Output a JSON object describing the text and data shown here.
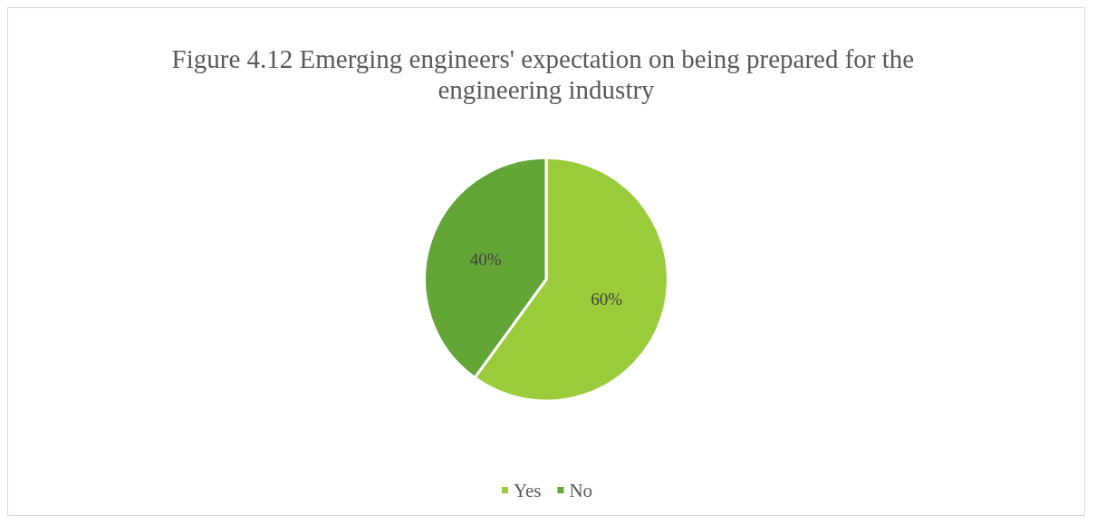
{
  "chart_data": {
    "type": "pie",
    "title": "Figure 4.12 Emerging engineers' expectation on being prepared for the engineering industry",
    "categories": [
      "Yes",
      "No"
    ],
    "values": [
      60,
      40
    ],
    "colors": [
      "#9acb3a",
      "#63a537"
    ],
    "value_labels": [
      "60%",
      "40%"
    ],
    "legend": "bottom"
  }
}
